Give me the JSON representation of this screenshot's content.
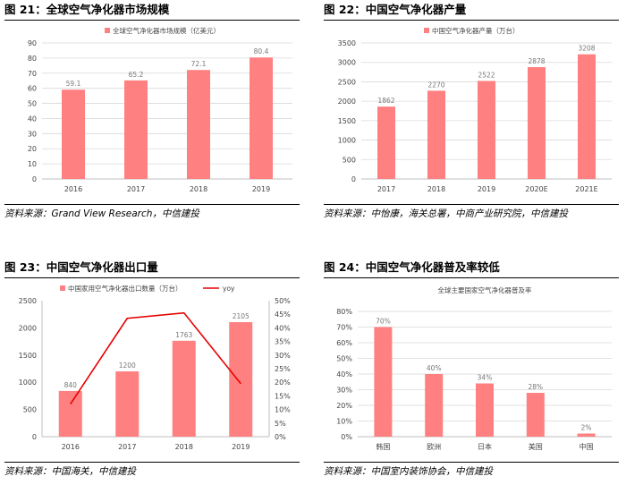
{
  "colors": {
    "bar": "#ff8080",
    "line": "#e60000",
    "grid": "#d9d9d9",
    "axis": "#bfbfbf"
  },
  "panels": [
    {
      "title": "图 21：全球空气净化器市场规模",
      "source": "资料来源：Grand View Research，中信建投",
      "chart_data": {
        "type": "bar",
        "legend": "全球空气净化器市场规模（亿美元）",
        "legend_position": "top",
        "categories": [
          "2016",
          "2017",
          "2018",
          "2019"
        ],
        "values": [
          59.1,
          65.2,
          72.1,
          80.4
        ],
        "labels": [
          "59.1",
          "65.2",
          "72.1",
          "80.4"
        ],
        "ylim": [
          0,
          90
        ],
        "yticks": [
          0,
          10,
          20,
          30,
          40,
          50,
          60,
          70,
          80,
          90
        ],
        "grid": true
      }
    },
    {
      "title": "图 22：中国空气净化器产量",
      "source": "资料来源：中怡康，海关总署，中商产业研究院，中信建投",
      "chart_data": {
        "type": "bar",
        "legend": "中国空气净化器产量（万台）",
        "legend_position": "top",
        "categories": [
          "2017",
          "2018",
          "2019",
          "2020E",
          "2021E"
        ],
        "values": [
          1862,
          2270,
          2522,
          2878,
          3208
        ],
        "labels": [
          "1862",
          "2270",
          "2522",
          "2878",
          "3208"
        ],
        "ylim": [
          0,
          3500
        ],
        "yticks": [
          0,
          500,
          1000,
          1500,
          2000,
          2500,
          3000,
          3500
        ],
        "grid": true
      }
    },
    {
      "title": "图 23：中国空气净化器出口量",
      "source": "资料来源：中国海关，中信建投",
      "chart_data": {
        "type": "bar",
        "legend": "中国家用空气净化器出口数量（万台）",
        "legend_position": "top",
        "categories": [
          "2016",
          "2017",
          "2018",
          "2019"
        ],
        "values": [
          840,
          1200,
          1763,
          2105
        ],
        "labels": [
          "840",
          "1200",
          "1763",
          "2105"
        ],
        "ylim": [
          0,
          2500
        ],
        "yticks": [
          0,
          500,
          1000,
          1500,
          2000,
          2500
        ],
        "line_series": {
          "name": "yoy",
          "values": [
            12,
            43.5,
            45.5,
            19.5
          ]
        },
        "y2lim": [
          0,
          50
        ],
        "y2ticks": [
          "0%",
          "5%",
          "10%",
          "15%",
          "20%",
          "25%",
          "30%",
          "35%",
          "40%",
          "45%",
          "50%"
        ],
        "grid": false
      }
    },
    {
      "title": "图 24：中国空气净化器普及率较低",
      "source": "资料来源：中国室内装饰协会，中信建投",
      "chart_data": {
        "type": "bar",
        "title": "全球主要国家空气净化器普及率",
        "categories": [
          "韩国",
          "欧洲",
          "日本",
          "美国",
          "中国"
        ],
        "values": [
          70,
          40,
          34,
          28,
          2
        ],
        "labels": [
          "70%",
          "40%",
          "34%",
          "28%",
          "2%"
        ],
        "ylim": [
          0,
          80
        ],
        "yticks": [
          "0%",
          "10%",
          "20%",
          "30%",
          "40%",
          "50%",
          "60%",
          "70%",
          "80%"
        ],
        "grid": true
      }
    }
  ]
}
